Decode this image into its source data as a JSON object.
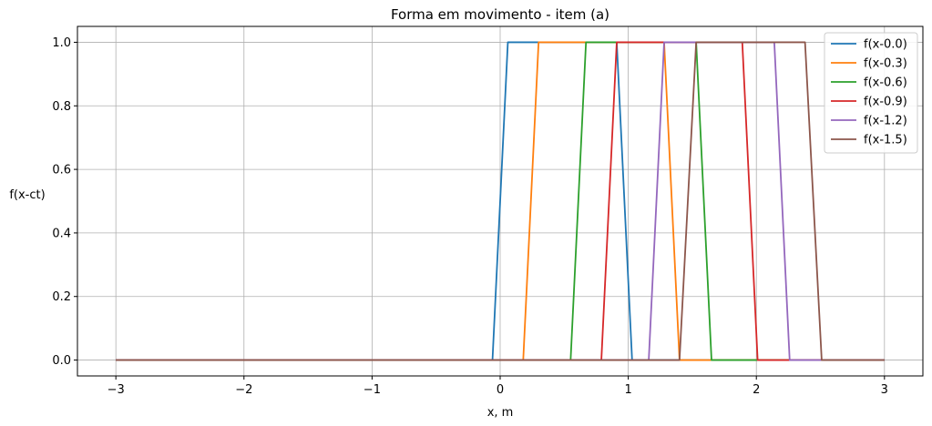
{
  "chart_data": {
    "type": "line",
    "title": "Forma em movimento - item (a)",
    "xlabel": "x, m",
    "ylabel": "f(x-ct)",
    "xlim": [
      -3.3,
      3.3
    ],
    "ylim": [
      -0.05,
      1.05
    ],
    "xticks": [
      -3,
      -2,
      -1,
      0,
      1,
      2,
      3
    ],
    "xtick_labels": [
      "−3",
      "−2",
      "−1",
      "0",
      "1",
      "2",
      "3"
    ],
    "yticks": [
      0.0,
      0.2,
      0.4,
      0.6,
      0.8,
      1.0
    ],
    "ytick_labels": [
      "0.0",
      "0.2",
      "0.4",
      "0.6",
      "0.8",
      "1.0"
    ],
    "grid": true,
    "legend_position": "top-right",
    "series": [
      {
        "name": "f(x-0.0)",
        "color": "#1f77b4",
        "x": [
          -3,
          -0.06,
          0.06,
          0.91,
          1.03,
          3
        ],
        "y": [
          0,
          0,
          1,
          1,
          0,
          0
        ]
      },
      {
        "name": "f(x-0.3)",
        "color": "#ff7f0e",
        "x": [
          -3,
          0.18,
          0.3,
          1.28,
          1.4,
          3
        ],
        "y": [
          0,
          0,
          1,
          1,
          0,
          0
        ]
      },
      {
        "name": "f(x-0.6)",
        "color": "#2ca02c",
        "x": [
          -3,
          0.55,
          0.67,
          1.53,
          1.65,
          3
        ],
        "y": [
          0,
          0,
          1,
          1,
          0,
          0
        ]
      },
      {
        "name": "f(x-0.9)",
        "color": "#d62728",
        "x": [
          -3,
          0.79,
          0.91,
          1.89,
          2.01,
          3
        ],
        "y": [
          0,
          0,
          1,
          1,
          0,
          0
        ]
      },
      {
        "name": "f(x-1.2)",
        "color": "#9467bd",
        "x": [
          -3,
          1.16,
          1.28,
          2.14,
          2.26,
          3
        ],
        "y": [
          0,
          0,
          1,
          1,
          0,
          0
        ]
      },
      {
        "name": "f(x-1.5)",
        "color": "#8c564b",
        "x": [
          -3,
          1.4,
          1.53,
          2.38,
          2.51,
          3
        ],
        "y": [
          0,
          0,
          1,
          1,
          0,
          0
        ]
      }
    ]
  }
}
